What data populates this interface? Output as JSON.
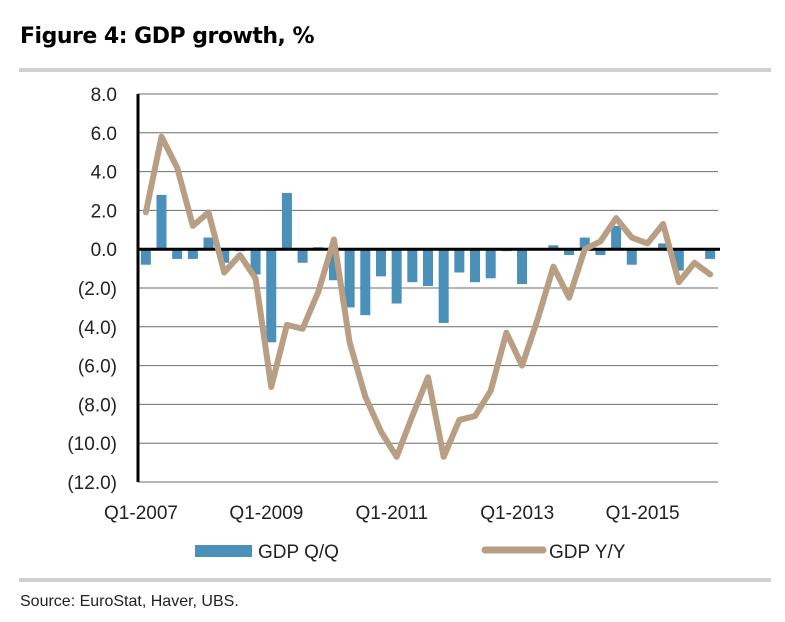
{
  "title": "Figure 4: GDP growth, %",
  "source": "Source:  EuroStat, Haver, UBS.",
  "chart_data": {
    "type": "bar+line",
    "title": "Figure 4: GDP growth, %",
    "xlabel": "",
    "ylabel": "",
    "ylim": [
      -12,
      8
    ],
    "yticks": [
      8,
      6,
      4,
      2,
      0,
      -2,
      -4,
      -6,
      -8,
      -10,
      -12
    ],
    "ytick_labels": [
      "8.0",
      "6.0",
      "4.0",
      "2.0",
      "0.0",
      "(2.0)",
      "(4.0)",
      "(6.0)",
      "(8.0)",
      "(10.0)",
      "(12.0)"
    ],
    "xtick_labels": [
      {
        "label": "Q1-2007",
        "index": 0
      },
      {
        "label": "Q1-2009",
        "index": 8
      },
      {
        "label": "Q1-2011",
        "index": 16
      },
      {
        "label": "Q1-2013",
        "index": 24
      },
      {
        "label": "Q1-2015",
        "index": 32
      }
    ],
    "x": [
      "Q1-2007",
      "Q2-2007",
      "Q3-2007",
      "Q4-2007",
      "Q1-2008",
      "Q2-2008",
      "Q3-2008",
      "Q4-2008",
      "Q1-2009",
      "Q2-2009",
      "Q3-2009",
      "Q4-2009",
      "Q1-2010",
      "Q2-2010",
      "Q3-2010",
      "Q4-2010",
      "Q1-2011",
      "Q2-2011",
      "Q3-2011",
      "Q4-2011",
      "Q1-2012",
      "Q2-2012",
      "Q3-2012",
      "Q4-2012",
      "Q1-2013",
      "Q2-2013",
      "Q3-2013",
      "Q4-2013",
      "Q1-2014",
      "Q2-2014",
      "Q3-2014",
      "Q4-2014",
      "Q1-2015",
      "Q2-2015",
      "Q3-2015",
      "Q4-2015",
      "Q1-2016"
    ],
    "grid": true,
    "legend": "bottom",
    "series": [
      {
        "name": "GDP Q/Q",
        "type": "bar",
        "color": "#4a90b8",
        "values": [
          -0.8,
          2.8,
          -0.5,
          -0.5,
          0.6,
          -0.7,
          -0.1,
          -1.3,
          -4.8,
          2.9,
          -0.7,
          0.1,
          -1.6,
          -3.0,
          -3.4,
          -1.4,
          -2.8,
          -1.7,
          -1.9,
          -3.8,
          -1.2,
          -1.7,
          -1.5,
          -0.1,
          -1.8,
          0.0,
          0.2,
          -0.3,
          0.6,
          -0.3,
          1.2,
          -0.8,
          0.0,
          0.3,
          -1.1,
          0.0,
          -0.5
        ]
      },
      {
        "name": "GDP Y/Y",
        "type": "line",
        "color": "#b89e82",
        "values": [
          1.9,
          5.8,
          4.2,
          1.2,
          1.9,
          -1.2,
          -0.3,
          -1.5,
          -7.1,
          -3.9,
          -4.1,
          -2.2,
          0.5,
          -4.8,
          -7.6,
          -9.4,
          -10.7,
          -8.6,
          -6.6,
          -10.7,
          -8.8,
          -8.6,
          -7.3,
          -4.3,
          -6.0,
          -3.6,
          -0.9,
          -2.5,
          0.0,
          0.4,
          1.6,
          0.6,
          0.3,
          1.3,
          -1.7,
          -0.7,
          -1.3
        ]
      }
    ]
  }
}
